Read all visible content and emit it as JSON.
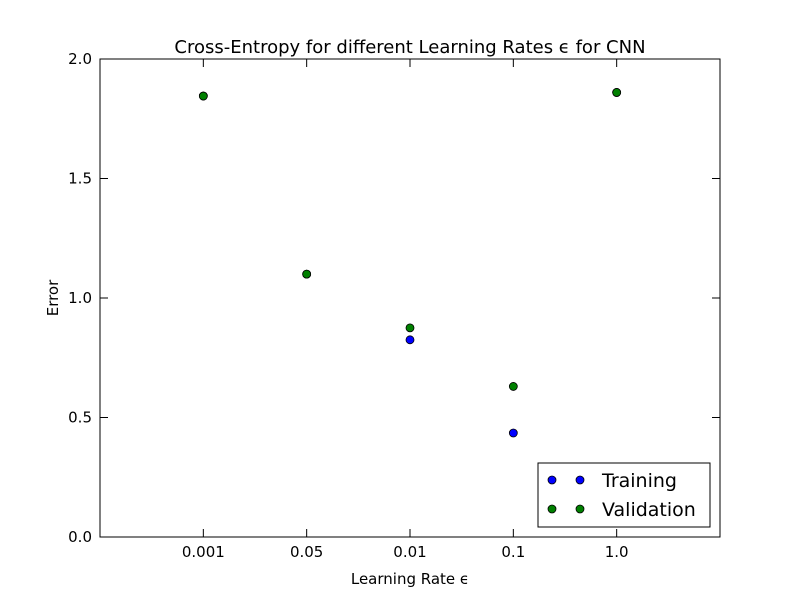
{
  "chart_data": {
    "type": "scatter",
    "title": "Cross-Entropy for different Learning Rates ϵ for CNN",
    "xlabel": "Learning Rate ϵ",
    "ylabel": "Error",
    "categories": [
      "0.001",
      "0.05",
      "0.01",
      "0.1",
      "1.0"
    ],
    "ylim": [
      0.0,
      2.0
    ],
    "yticks": [
      "0.0",
      "0.5",
      "1.0",
      "1.5",
      "2.0"
    ],
    "grid": false,
    "legend_position": "bottom-right",
    "series": [
      {
        "name": "Training",
        "color": "#0000ff",
        "values": [
          1.845,
          1.1,
          0.825,
          0.435,
          1.86
        ]
      },
      {
        "name": "Validation",
        "color": "#008000",
        "values": [
          1.845,
          1.1,
          0.875,
          0.63,
          1.86
        ]
      }
    ]
  }
}
